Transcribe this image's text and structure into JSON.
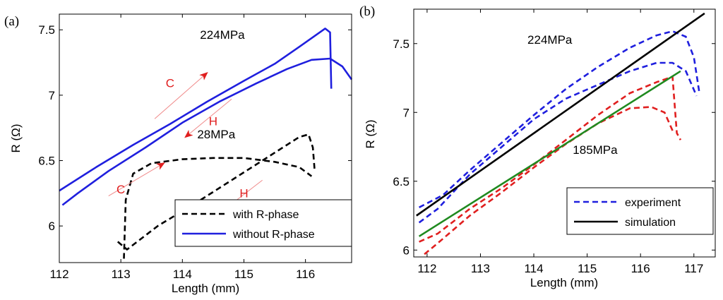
{
  "chart_data": [
    {
      "type": "line",
      "panel_label": "(a)",
      "xlabel": "Length (mm)",
      "ylabel": "R (Ω)",
      "xlim": [
        112,
        116.75
      ],
      "ylim": [
        5.72,
        7.62
      ],
      "xticks": [
        112,
        113,
        114,
        115,
        116
      ],
      "yticks": [
        6,
        6.5,
        7,
        7.5
      ],
      "grid": false,
      "legend_position": "bottom-right",
      "legend": [
        "with R-phase",
        "without R-phase"
      ],
      "series": [
        {
          "name": "without R-phase (upper)",
          "color": "#1f1fde",
          "dash": "solid",
          "points": [
            [
              112.0,
              6.27
            ],
            [
              112.6,
              6.45
            ],
            [
              113.2,
              6.62
            ],
            [
              113.8,
              6.78
            ],
            [
              114.4,
              6.95
            ],
            [
              115.0,
              7.11
            ],
            [
              115.5,
              7.24
            ],
            [
              115.9,
              7.37
            ],
            [
              116.2,
              7.47
            ],
            [
              116.32,
              7.51
            ],
            [
              116.4,
              7.48
            ],
            [
              116.42,
              7.05
            ]
          ]
        },
        {
          "name": "without R-phase (lower)",
          "color": "#1f1fde",
          "dash": "solid",
          "points": [
            [
              112.05,
              6.16
            ],
            [
              112.3,
              6.25
            ],
            [
              112.8,
              6.42
            ],
            [
              113.4,
              6.6
            ],
            [
              114.0,
              6.79
            ],
            [
              114.6,
              6.95
            ],
            [
              115.2,
              7.09
            ],
            [
              115.7,
              7.2
            ],
            [
              116.1,
              7.27
            ],
            [
              116.4,
              7.28
            ],
            [
              116.6,
              7.22
            ],
            [
              116.75,
              7.12
            ]
          ]
        },
        {
          "name": "with R-phase (upper)",
          "color": "#000000",
          "dash": "dashed",
          "points": [
            [
              113.05,
              5.75
            ],
            [
              113.08,
              6.2
            ],
            [
              113.2,
              6.4
            ],
            [
              113.5,
              6.48
            ],
            [
              114.0,
              6.51
            ],
            [
              114.5,
              6.52
            ],
            [
              115.0,
              6.52
            ],
            [
              115.5,
              6.49
            ],
            [
              115.9,
              6.45
            ],
            [
              116.1,
              6.38
            ]
          ]
        },
        {
          "name": "with R-phase (lower)",
          "color": "#000000",
          "dash": "dashed",
          "points": [
            [
              112.95,
              5.88
            ],
            [
              113.1,
              5.82
            ],
            [
              113.6,
              6.0
            ],
            [
              114.2,
              6.17
            ],
            [
              114.8,
              6.35
            ],
            [
              115.4,
              6.53
            ],
            [
              115.9,
              6.68
            ],
            [
              116.05,
              6.7
            ],
            [
              116.12,
              6.6
            ],
            [
              116.15,
              6.42
            ]
          ]
        }
      ],
      "annotations": [
        {
          "text": "224MPa",
          "x": 114.65,
          "y": 7.43
        },
        {
          "text": "28MPa",
          "x": 114.55,
          "y": 6.67
        },
        {
          "text": "C",
          "x": 113.8,
          "y": 7.06
        },
        {
          "text": "H",
          "x": 114.5,
          "y": 6.77
        },
        {
          "text": "C",
          "x": 113.0,
          "y": 6.25
        },
        {
          "text": "H",
          "x": 115.0,
          "y": 6.22
        }
      ],
      "arrows": [
        {
          "label": "C",
          "from": [
            113.55,
            6.82
          ],
          "to": [
            114.4,
            7.17
          ]
        },
        {
          "label": "H",
          "from": [
            114.8,
            6.97
          ],
          "to": [
            114.05,
            6.68
          ]
        },
        {
          "label": "C",
          "from": [
            112.8,
            6.23
          ],
          "to": [
            113.7,
            6.48
          ]
        },
        {
          "label": "H",
          "from": [
            115.3,
            6.35
          ],
          "to": [
            114.5,
            6.06
          ]
        }
      ]
    },
    {
      "type": "line",
      "panel_label": "(b)",
      "xlabel": "Length (mm)",
      "ylabel": "R (Ω)",
      "xlim": [
        111.75,
        117.4
      ],
      "ylim": [
        5.95,
        7.75
      ],
      "xticks": [
        112,
        113,
        114,
        115,
        116,
        117
      ],
      "yticks": [
        6,
        6.5,
        7,
        7.5
      ],
      "grid": false,
      "legend_position": "bottom-right",
      "legend": [
        "experiment",
        "simulation"
      ],
      "series": [
        {
          "name": "experiment 224MPa (upper)",
          "color": "#1f1fde",
          "dash": "dashed",
          "points": [
            [
              111.85,
              6.31
            ],
            [
              112.3,
              6.4
            ],
            [
              112.8,
              6.58
            ],
            [
              113.4,
              6.78
            ],
            [
              114.0,
              6.98
            ],
            [
              114.6,
              7.17
            ],
            [
              115.2,
              7.33
            ],
            [
              115.8,
              7.47
            ],
            [
              116.3,
              7.56
            ],
            [
              116.6,
              7.59
            ],
            [
              116.85,
              7.55
            ],
            [
              117.0,
              7.4
            ],
            [
              117.1,
              7.15
            ]
          ]
        },
        {
          "name": "experiment 224MPa (lower)",
          "color": "#1f1fde",
          "dash": "dashed",
          "points": [
            [
              111.85,
              6.2
            ],
            [
              112.2,
              6.3
            ],
            [
              112.8,
              6.55
            ],
            [
              113.4,
              6.75
            ],
            [
              114.0,
              6.95
            ],
            [
              114.6,
              7.1
            ],
            [
              115.2,
              7.2
            ],
            [
              115.8,
              7.3
            ],
            [
              116.3,
              7.36
            ],
            [
              116.6,
              7.36
            ],
            [
              116.85,
              7.3
            ],
            [
              117.05,
              7.12
            ]
          ]
        },
        {
          "name": "experiment 185MPa (upper)",
          "color": "#e01f1f",
          "dash": "dashed",
          "points": [
            [
              111.85,
              6.06
            ],
            [
              112.2,
              6.12
            ],
            [
              112.8,
              6.3
            ],
            [
              113.4,
              6.45
            ],
            [
              114.0,
              6.62
            ],
            [
              114.6,
              6.8
            ],
            [
              115.2,
              6.98
            ],
            [
              115.8,
              7.14
            ],
            [
              116.3,
              7.22
            ],
            [
              116.6,
              7.26
            ],
            [
              116.68,
              6.85
            ],
            [
              116.75,
              6.8
            ]
          ]
        },
        {
          "name": "experiment 185MPa (lower)",
          "color": "#e01f1f",
          "dash": "dashed",
          "points": [
            [
              111.95,
              5.97
            ],
            [
              112.2,
              6.05
            ],
            [
              112.8,
              6.25
            ],
            [
              113.4,
              6.42
            ],
            [
              114.0,
              6.6
            ],
            [
              114.6,
              6.77
            ],
            [
              115.2,
              6.92
            ],
            [
              115.8,
              7.03
            ],
            [
              116.2,
              7.04
            ],
            [
              116.45,
              7.0
            ],
            [
              116.62,
              6.85
            ]
          ]
        },
        {
          "name": "simulation 224MPa",
          "color": "#000000",
          "dash": "solid",
          "points": [
            [
              111.8,
              6.25
            ],
            [
              117.2,
              7.72
            ]
          ]
        },
        {
          "name": "simulation 185MPa",
          "color": "#1f8a1f",
          "dash": "solid",
          "points": [
            [
              111.85,
              6.1
            ],
            [
              116.75,
              7.3
            ]
          ]
        }
      ],
      "annotations": [
        {
          "text": "224MPa",
          "x": 114.3,
          "y": 7.5
        },
        {
          "text": "185MPa",
          "x": 115.15,
          "y": 6.7
        }
      ],
      "arrows": []
    }
  ]
}
